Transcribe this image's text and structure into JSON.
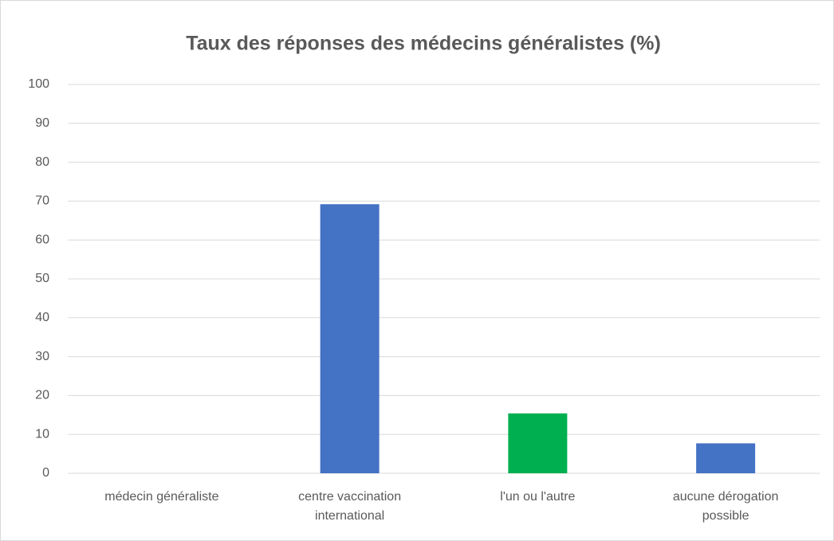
{
  "chart_data": {
    "type": "bar",
    "title": "Taux des réponses des médecins généralistes (%)",
    "categories": [
      "médecin généraliste",
      "centre vaccination international",
      "l'un ou l'autre",
      "aucune dérogation possible"
    ],
    "values": [
      0,
      69.2,
      15.4,
      7.7
    ],
    "colors": [
      "#4472c4",
      "#4472c4",
      "#00b050",
      "#4472c4"
    ],
    "ylim": [
      0,
      100
    ],
    "yticks": [
      0,
      10,
      20,
      30,
      40,
      50,
      60,
      70,
      80,
      90,
      100
    ],
    "grid": true
  }
}
